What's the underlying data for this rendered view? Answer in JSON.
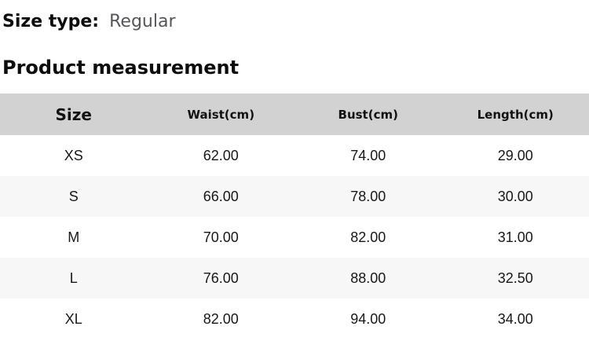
{
  "size_type": {
    "label": "Size type:",
    "value": "Regular"
  },
  "section": {
    "title": "Product measurement"
  },
  "table": {
    "headers": [
      "Size",
      "Waist(cm)",
      "Bust(cm)",
      "Length(cm)"
    ],
    "rows": [
      [
        "XS",
        "62.00",
        "74.00",
        "29.00"
      ],
      [
        "S",
        "66.00",
        "78.00",
        "30.00"
      ],
      [
        "M",
        "70.00",
        "82.00",
        "31.00"
      ],
      [
        "L",
        "76.00",
        "88.00",
        "32.50"
      ],
      [
        "XL",
        "82.00",
        "94.00",
        "34.00"
      ]
    ]
  },
  "colors": {
    "header_bg": "#d2d2d2",
    "stripe_bg": "#f7f7f8",
    "heading_text": "#0d0d0d",
    "muted_text": "#55565a"
  }
}
